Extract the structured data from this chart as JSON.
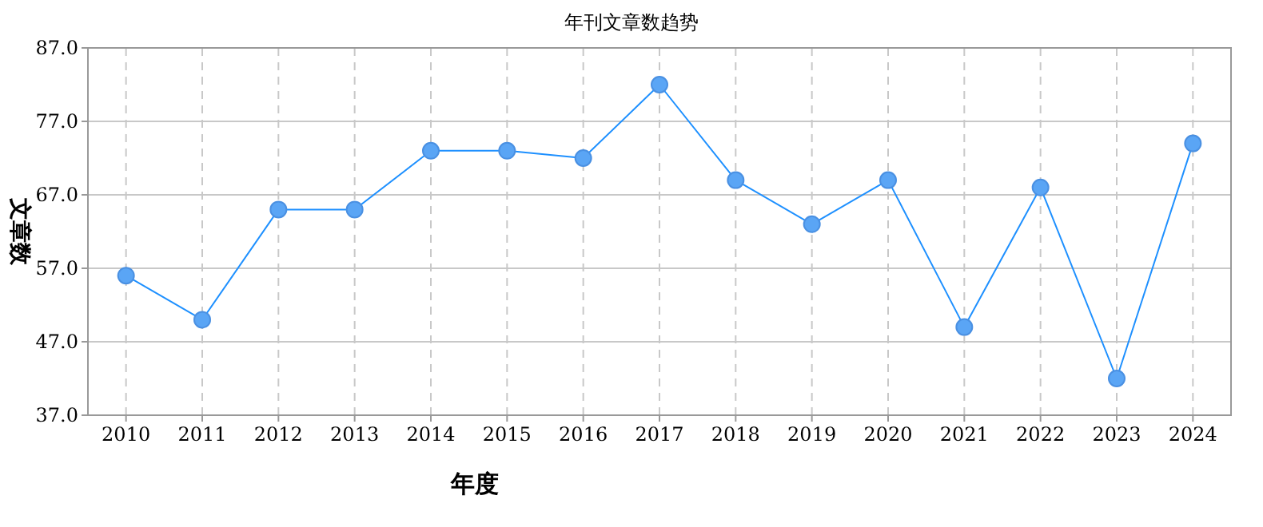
{
  "chart_data": {
    "type": "line",
    "title": "年刊文章数趋势",
    "xlabel": "年度",
    "ylabel": "文章数",
    "categories": [
      "2010",
      "2011",
      "2012",
      "2013",
      "2014",
      "2015",
      "2016",
      "2017",
      "2018",
      "2019",
      "2020",
      "2021",
      "2022",
      "2023",
      "2024"
    ],
    "series": [
      {
        "color": "#1e90ff",
        "values": [
          56,
          50,
          65,
          65,
          73,
          73,
          72,
          82,
          69,
          63,
          69,
          49,
          68,
          42,
          74
        ]
      }
    ],
    "ylim": [
      37,
      87
    ],
    "yticks": [
      {
        "value": 37,
        "label": "37.0"
      },
      {
        "value": 47,
        "label": "47.0"
      },
      {
        "value": 57,
        "label": "57.0"
      },
      {
        "value": 67,
        "label": "67.0"
      },
      {
        "value": 77,
        "label": "77.0"
      },
      {
        "value": 87,
        "label": "87.0"
      }
    ],
    "grid": true,
    "marker": "circle",
    "line_style": "solid"
  }
}
